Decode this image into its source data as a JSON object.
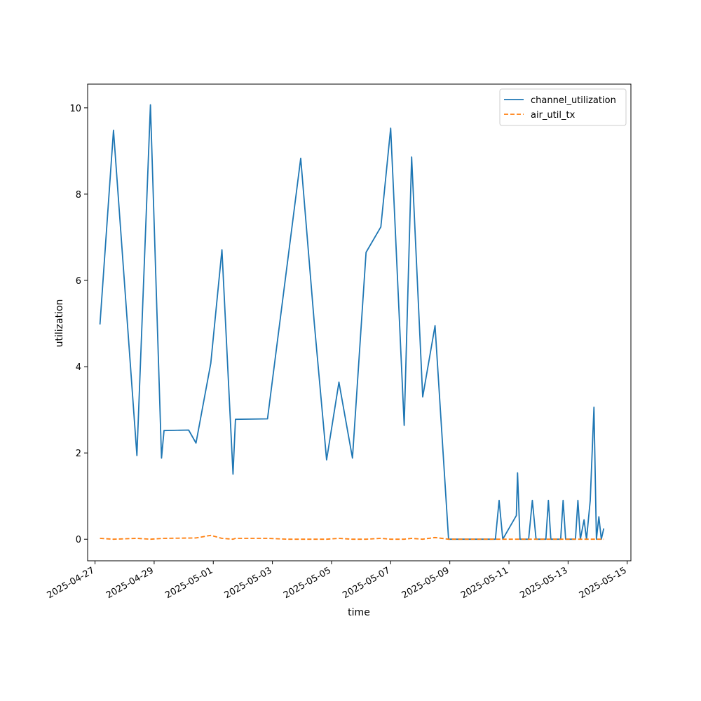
{
  "chart_data": {
    "type": "line",
    "title": "",
    "xlabel": "time",
    "ylabel": "utilization",
    "x_axis_type": "datetime",
    "xlim": [
      "2025-04-26T18:00",
      "2025-05-15T03:00"
    ],
    "ylim": [
      -0.5,
      10.55
    ],
    "x_ticks": [
      "2025-04-27",
      "2025-04-29",
      "2025-05-01",
      "2025-05-03",
      "2025-05-05",
      "2025-05-07",
      "2025-05-09",
      "2025-05-11",
      "2025-05-13",
      "2025-05-15"
    ],
    "y_ticks": [
      0,
      2,
      4,
      6,
      8,
      10
    ],
    "grid": false,
    "legend_position": "top-right",
    "series": [
      {
        "name": "channel_utilization",
        "color": "#1f77b4",
        "style": "solid",
        "points": [
          [
            "2025-04-27T04:00",
            4.98
          ],
          [
            "2025-04-27T15:00",
            9.48
          ],
          [
            "2025-04-28T10:00",
            1.94
          ],
          [
            "2025-04-28T21:00",
            10.07
          ],
          [
            "2025-04-29T06:00",
            1.88
          ],
          [
            "2025-04-29T08:00",
            2.52
          ],
          [
            "2025-04-30T04:00",
            2.53
          ],
          [
            "2025-04-30T10:00",
            2.23
          ],
          [
            "2025-04-30T22:00",
            4.08
          ],
          [
            "2025-05-01T07:00",
            6.71
          ],
          [
            "2025-05-01T16:00",
            1.51
          ],
          [
            "2025-05-01T18:00",
            2.78
          ],
          [
            "2025-05-02T20:00",
            2.79
          ],
          [
            "2025-05-03T12:00",
            6.37
          ],
          [
            "2025-05-03T23:00",
            8.83
          ],
          [
            "2025-05-04T10:00",
            5.0
          ],
          [
            "2025-05-04T20:00",
            1.84
          ],
          [
            "2025-05-05T06:00",
            3.64
          ],
          [
            "2025-05-05T17:00",
            1.88
          ],
          [
            "2025-05-06T04:00",
            6.65
          ],
          [
            "2025-05-06T16:00",
            7.24
          ],
          [
            "2025-05-07T00:00",
            9.53
          ],
          [
            "2025-05-07T11:00",
            2.64
          ],
          [
            "2025-05-07T17:00",
            8.86
          ],
          [
            "2025-05-08T02:00",
            3.3
          ],
          [
            "2025-05-08T12:00",
            4.95
          ],
          [
            "2025-05-08T23:00",
            0.0
          ],
          [
            "2025-05-10T13:00",
            0.0
          ],
          [
            "2025-05-10T16:00",
            0.9
          ],
          [
            "2025-05-10T19:00",
            0.0
          ],
          [
            "2025-05-11T06:00",
            0.55
          ],
          [
            "2025-05-11T07:00",
            1.54
          ],
          [
            "2025-05-11T09:00",
            0.0
          ],
          [
            "2025-05-11T16:00",
            0.0
          ],
          [
            "2025-05-11T19:00",
            0.9
          ],
          [
            "2025-05-11T22:00",
            0.0
          ],
          [
            "2025-05-12T06:00",
            0.0
          ],
          [
            "2025-05-12T08:00",
            0.9
          ],
          [
            "2025-05-12T10:00",
            0.0
          ],
          [
            "2025-05-12T18:00",
            0.0
          ],
          [
            "2025-05-12T20:00",
            0.9
          ],
          [
            "2025-05-12T22:00",
            0.0
          ],
          [
            "2025-05-13T06:00",
            0.0
          ],
          [
            "2025-05-13T08:00",
            0.9
          ],
          [
            "2025-05-13T10:00",
            0.0
          ],
          [
            "2025-05-13T13:00",
            0.45
          ],
          [
            "2025-05-13T15:00",
            0.0
          ],
          [
            "2025-05-13T18:00",
            0.9
          ],
          [
            "2025-05-13T21:00",
            3.06
          ],
          [
            "2025-05-13T23:00",
            0.0
          ],
          [
            "2025-05-14T01:00",
            0.52
          ],
          [
            "2025-05-14T03:00",
            0.0
          ],
          [
            "2025-05-14T05:00",
            0.25
          ]
        ]
      },
      {
        "name": "air_util_tx",
        "color": "#ff7f0e",
        "style": "dashed",
        "points": [
          [
            "2025-04-27T04:00",
            0.02
          ],
          [
            "2025-04-27T15:00",
            0.0
          ],
          [
            "2025-04-28T10:00",
            0.02
          ],
          [
            "2025-04-28T21:00",
            0.0
          ],
          [
            "2025-04-29T08:00",
            0.02
          ],
          [
            "2025-04-30T10:00",
            0.03
          ],
          [
            "2025-04-30T22:00",
            0.09
          ],
          [
            "2025-05-01T07:00",
            0.02
          ],
          [
            "2025-05-01T16:00",
            0.0
          ],
          [
            "2025-05-01T18:00",
            0.02
          ],
          [
            "2025-05-02T20:00",
            0.02
          ],
          [
            "2025-05-03T12:00",
            0.0
          ],
          [
            "2025-05-04T20:00",
            0.0
          ],
          [
            "2025-05-05T06:00",
            0.02
          ],
          [
            "2025-05-05T17:00",
            0.0
          ],
          [
            "2025-05-06T04:00",
            0.0
          ],
          [
            "2025-05-06T16:00",
            0.02
          ],
          [
            "2025-05-07T00:00",
            0.0
          ],
          [
            "2025-05-07T11:00",
            0.0
          ],
          [
            "2025-05-07T17:00",
            0.02
          ],
          [
            "2025-05-08T02:00",
            0.0
          ],
          [
            "2025-05-08T12:00",
            0.04
          ],
          [
            "2025-05-08T23:00",
            0.0
          ],
          [
            "2025-05-14T05:00",
            0.0
          ]
        ]
      }
    ]
  }
}
